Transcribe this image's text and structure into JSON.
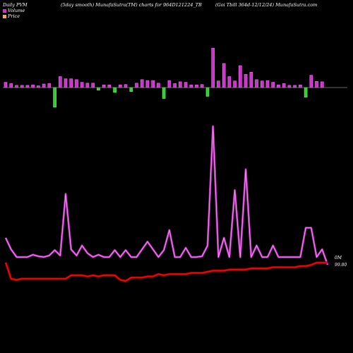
{
  "header": {
    "left": "Daily PVM",
    "middle": "(5day smooth) MunafaSutra(TM) charts for 964D121224_TB",
    "right": "(Goi  Tbill 364d-12/12/24) MunafaSutra.com"
  },
  "legend": [
    {
      "label": "Volume",
      "color": "#cc33cc"
    },
    {
      "label": "Price",
      "color": "#f4a460"
    }
  ],
  "colors": {
    "volume_up": "#cc33cc",
    "volume_down": "#33cc33",
    "volume_line": "#cc44cc",
    "price_line": "#ff0000",
    "background": "#000000"
  },
  "chart_data": {
    "type": "bar",
    "x": [
      1,
      2,
      3,
      4,
      5,
      6,
      7,
      8,
      9,
      10,
      11,
      12,
      13,
      14,
      15,
      16,
      17,
      18,
      19,
      20,
      21,
      22,
      23,
      24,
      25,
      26,
      27,
      28,
      29,
      30,
      31,
      32,
      33,
      34,
      35,
      36,
      37,
      38,
      39,
      40,
      41,
      42,
      43,
      44,
      45,
      46,
      47,
      48,
      49,
      50,
      51,
      52,
      53,
      54,
      55,
      56,
      57,
      58,
      59,
      60
    ],
    "series": [
      {
        "kind": "volume_bars",
        "values": [
          1.2,
          0.9,
          0.5,
          0.5,
          0.5,
          0.6,
          0.4,
          0.8,
          -0.9,
          4.5,
          2.5,
          2.0,
          2.0,
          1.8,
          1.2,
          1.0,
          -1.0,
          0.6,
          0.6,
          -0.6,
          1.1,
          0.6,
          -0.7,
          0.9,
          1.0,
          1.8,
          1.6,
          1.6,
          -1.0,
          2.5,
          1.6,
          0.9,
          1.3,
          1.2,
          0.6,
          0.6,
          -0.7,
          2.0,
          9.0,
          1.5,
          5.5,
          2.5,
          1.5,
          5.0,
          3.0,
          3.5,
          1.8,
          1.5,
          1.6,
          1.2,
          0.6,
          0.9,
          0.5,
          0.5,
          -0.6,
          2.2,
          2.8,
          1.4,
          1.3,
          0
        ],
        "down_indices": [
          9,
          17,
          20,
          23,
          29,
          37,
          55
        ]
      },
      {
        "kind": "volume_line",
        "values": [
          3.5,
          2.0,
          1.0,
          1.0,
          1.0,
          1.3,
          1.1,
          1.0,
          1.2,
          1.9,
          1.2,
          9.2,
          2.0,
          1.2,
          2.5,
          1.5,
          1.0,
          1.3,
          1.0,
          1.0,
          1.9,
          1.0,
          1.9,
          1.0,
          1.0,
          2.0,
          3.0,
          2.0,
          1.0,
          1.9,
          4.5,
          1.0,
          1.0,
          2.2,
          1.0,
          1.0,
          1.1,
          2.5,
          18.0,
          1.0,
          3.5,
          1.0,
          9.7,
          1.0,
          12.4,
          1.0,
          2.5,
          1.0,
          1.0,
          2.5,
          1.0,
          1.0,
          1.0,
          1.0,
          1.0,
          4.8,
          4.8,
          1.0,
          2.0,
          0
        ],
        "label": "0M"
      },
      {
        "kind": "price_line",
        "values": [
          99.58,
          99.44,
          99.43,
          99.44,
          99.44,
          99.44,
          99.44,
          99.44,
          99.44,
          99.44,
          99.44,
          99.44,
          99.47,
          99.47,
          99.47,
          99.46,
          99.47,
          99.46,
          99.47,
          99.47,
          99.47,
          99.43,
          99.42,
          99.45,
          99.45,
          99.45,
          99.46,
          99.46,
          99.48,
          99.47,
          99.48,
          99.48,
          99.48,
          99.48,
          99.49,
          99.49,
          99.49,
          99.5,
          99.51,
          99.51,
          99.51,
          99.52,
          99.52,
          99.52,
          99.52,
          99.53,
          99.53,
          99.53,
          99.53,
          99.54,
          99.54,
          99.54,
          99.54,
          99.54,
          99.55,
          99.55,
          99.56,
          99.58,
          99.58,
          99.58
        ],
        "label": "99.80"
      }
    ]
  }
}
